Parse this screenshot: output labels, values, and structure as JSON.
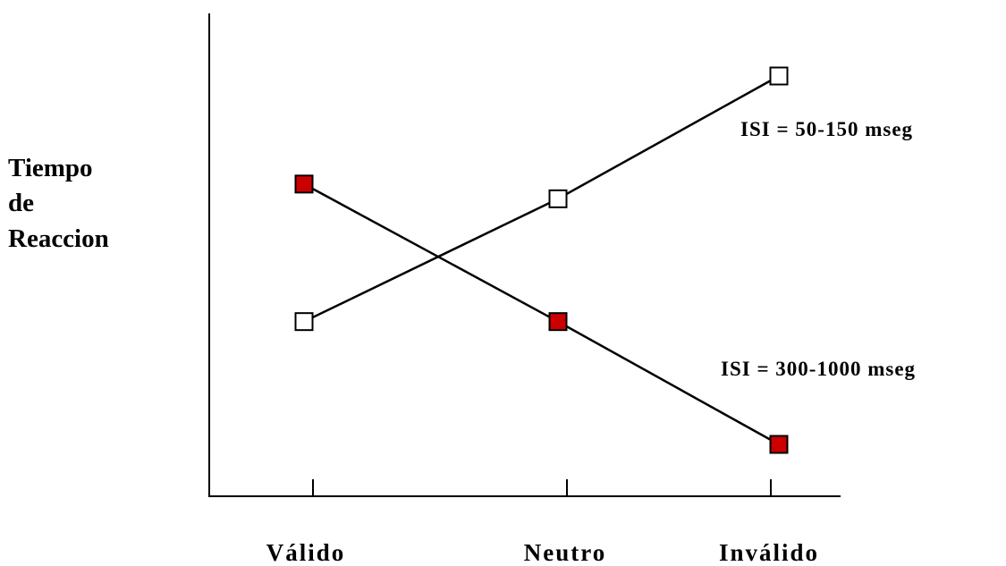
{
  "chart_data": {
    "type": "line",
    "title": "",
    "xlabel": "",
    "ylabel_lines": [
      "Tiempo",
      "de",
      "Reaccion"
    ],
    "categories": [
      "Válido",
      "Neutro",
      "Inválido"
    ],
    "series": [
      {
        "name": "ISI = 50-150 mseg",
        "values": [
          1,
          2,
          3
        ],
        "marker": "open-square",
        "fill": "#ffffff"
      },
      {
        "name": "ISI = 300-1000 mseg",
        "values": [
          2.12,
          1,
          0
        ],
        "marker": "filled-square",
        "fill": "#cc0000"
      }
    ],
    "ylim": [
      0,
      3
    ],
    "grid": false,
    "legend": "inline labels at right end of each series"
  }
}
